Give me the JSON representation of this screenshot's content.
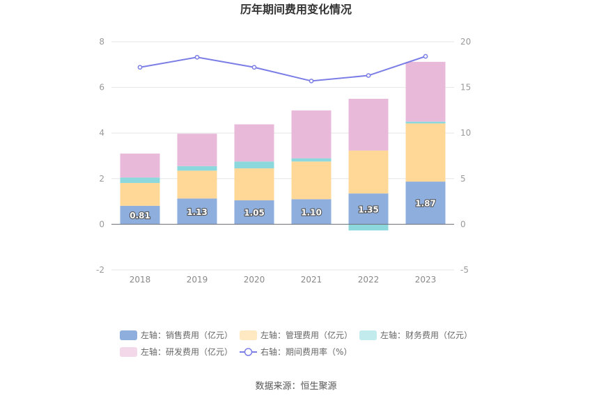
{
  "chart_data": {
    "type": "bar",
    "title": "历年期间费用变化情况",
    "categories": [
      "2018",
      "2019",
      "2020",
      "2021",
      "2022",
      "2023"
    ],
    "left_axis": {
      "min": -2,
      "max": 8,
      "ticks": [
        "8",
        "6",
        "4",
        "2",
        "0",
        "-2"
      ]
    },
    "right_axis": {
      "min": -5,
      "max": 20,
      "ticks": [
        "20",
        "15",
        "10",
        "5",
        "0",
        "-5"
      ]
    },
    "series": [
      {
        "name": "左轴：销售费用（亿元）",
        "axis": "left",
        "stack": true,
        "color": "#8eaedd",
        "values": [
          0.81,
          1.13,
          1.05,
          1.1,
          1.35,
          1.87
        ],
        "labels": [
          "0.81",
          "1.13",
          "1.05",
          "1.10",
          "1.35",
          "1.87"
        ]
      },
      {
        "name": "左轴：管理费用（亿元）",
        "axis": "left",
        "stack": true,
        "color": "#ffd898",
        "values": [
          1.0,
          1.22,
          1.4,
          1.65,
          1.88,
          2.55
        ]
      },
      {
        "name": "左轴：财务费用（亿元）",
        "axis": "left",
        "stack": true,
        "color": "#8dd8dc",
        "values": [
          0.24,
          0.2,
          0.3,
          0.14,
          -0.27,
          0.08
        ]
      },
      {
        "name": "左轴：研发费用（亿元）",
        "axis": "left",
        "stack": true,
        "color": "#e8b9d9",
        "values": [
          1.05,
          1.42,
          1.63,
          2.1,
          2.27,
          2.62
        ]
      },
      {
        "name": "右轴：期间费用率（%）",
        "axis": "right",
        "type": "line",
        "color": "#7b7de6",
        "values": [
          17.2,
          18.3,
          17.2,
          15.7,
          16.3,
          18.4
        ]
      }
    ],
    "legend_position": "bottom",
    "grid": true,
    "source": "数据来源：恒生聚源"
  }
}
